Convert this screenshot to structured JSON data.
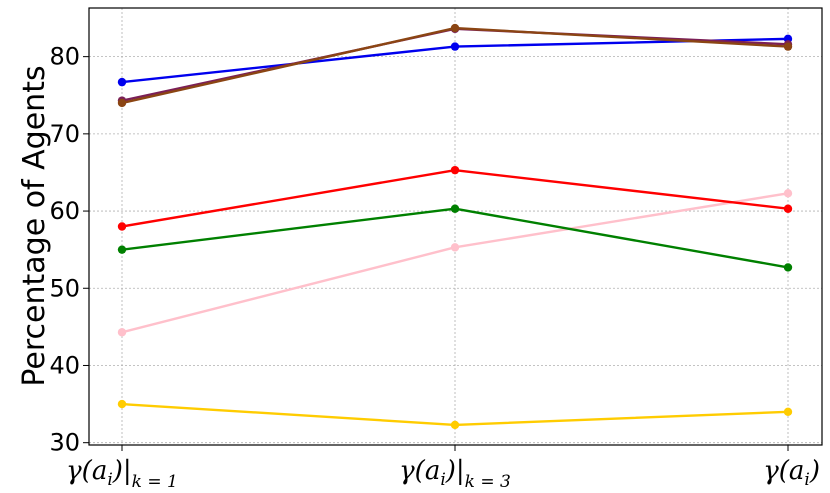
{
  "chart_data": {
    "type": "line",
    "ylabel": "Percentage of Agents",
    "xlabel": "",
    "title": "",
    "categories": [
      {
        "main": "γ(a",
        "sub1": "i",
        "close": ")|",
        "sub2": "k = 1"
      },
      {
        "main": "γ(a",
        "sub1": "i",
        "close": ")|",
        "sub2": "k = 3"
      },
      {
        "main": "γ(a",
        "sub1": "i",
        "close": ")",
        "sub2": ""
      }
    ],
    "ylim": [
      29.7,
      86.3
    ],
    "yticks": [
      30,
      40,
      50,
      60,
      70,
      80
    ],
    "grid": true,
    "series": [
      {
        "color": "#ffc0cb",
        "values": [
          44.3,
          55.3,
          62.3
        ]
      },
      {
        "color": "#0000ee",
        "values": [
          76.7,
          81.3,
          82.3
        ]
      },
      {
        "color": "#7b1f57",
        "values": [
          74.3,
          83.6,
          81.6
        ]
      },
      {
        "color": "#8b4513",
        "values": [
          74.0,
          83.7,
          81.3
        ]
      },
      {
        "color": "#ff0000",
        "values": [
          58.0,
          65.3,
          60.3
        ]
      },
      {
        "color": "#008000",
        "values": [
          55.0,
          60.3,
          52.7
        ]
      },
      {
        "color": "#ffcc00",
        "values": [
          35.0,
          32.3,
          34.0
        ]
      }
    ]
  }
}
